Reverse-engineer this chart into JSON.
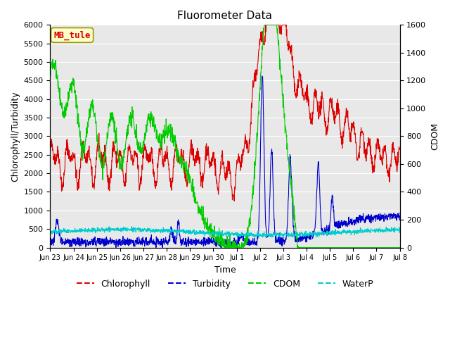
{
  "title": "Fluorometer Data",
  "xlabel": "Time",
  "ylabel_left": "Chlorophyll/Turbidity",
  "ylabel_right": "CDOM",
  "ylim_left": [
    0,
    6000
  ],
  "ylim_right": [
    0,
    1600
  ],
  "station_label": "MB_tule",
  "colors": {
    "chlorophyll": "#dd0000",
    "turbidity": "#0000cc",
    "cdom": "#00cc00",
    "waterp": "#00cccc"
  },
  "tick_labels": [
    "Jun 23",
    "Jun 24",
    "Jun 25",
    "Jun 26",
    "Jun 27",
    "Jun 28",
    "Jun 29",
    "Jun 30",
    "Jul 1",
    "Jul 2",
    "Jul 3",
    "Jul 4",
    "Jul 5",
    "Jul 6",
    "Jul 7",
    "Jul 8"
  ],
  "plot_bg_color": "#e8e8e8"
}
